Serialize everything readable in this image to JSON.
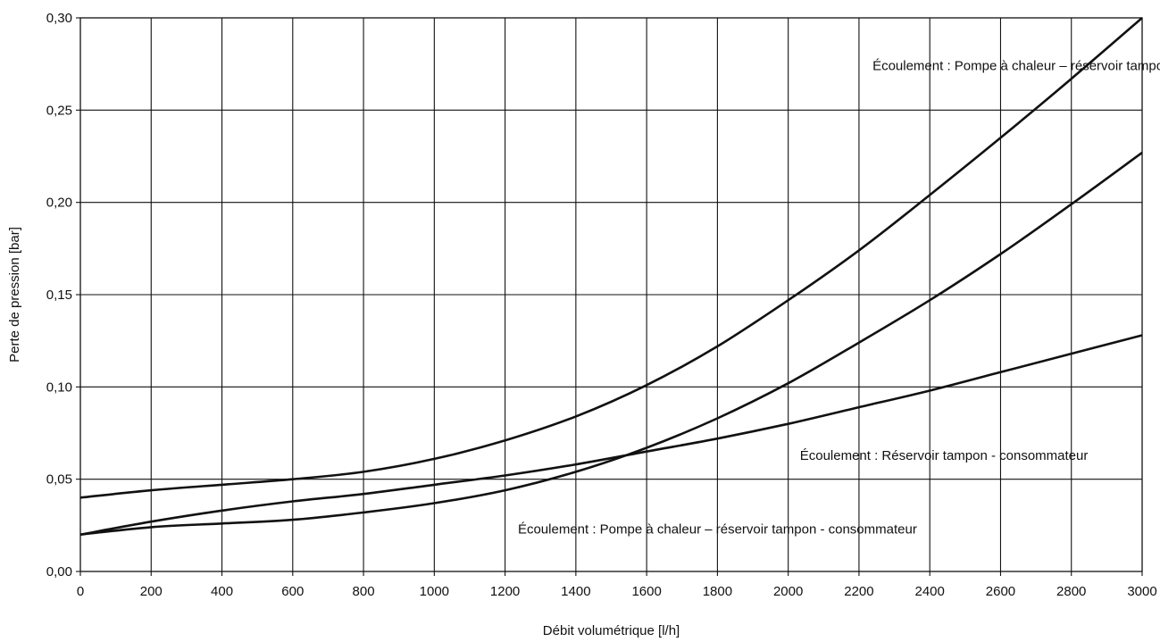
{
  "chart_data": {
    "type": "line",
    "title": "",
    "xlabel": "Débit volumétrique [l/h]",
    "ylabel": "Perte de pression [bar]",
    "xlim": [
      0,
      3000
    ],
    "ylim": [
      0,
      0.3
    ],
    "grid": true,
    "x_ticks": [
      0,
      200,
      400,
      600,
      800,
      1000,
      1200,
      1400,
      1600,
      1800,
      2000,
      2200,
      2400,
      2600,
      2800,
      3000
    ],
    "x_tick_labels": [
      "0",
      "200",
      "400",
      "600",
      "800",
      "1000",
      "1200",
      "1400",
      "1600",
      "1800",
      "2000",
      "2200",
      "2400",
      "2600",
      "2800",
      "3000"
    ],
    "y_ticks": [
      0,
      0.05,
      0.1,
      0.15,
      0.2,
      0.25,
      0.3
    ],
    "y_tick_labels": [
      "0,00",
      "0,05",
      "0,10",
      "0,15",
      "0,20",
      "0,25",
      "0,30"
    ],
    "line_color": "#111111",
    "series": [
      {
        "x": [
          0,
          200,
          400,
          600,
          800,
          1000,
          1200,
          1400,
          1600,
          1800,
          2000,
          2200,
          2400,
          2600,
          2800,
          3000
        ],
        "y": [
          0.04,
          0.044,
          0.047,
          0.05,
          0.054,
          0.061,
          0.071,
          0.084,
          0.101,
          0.122,
          0.147,
          0.174,
          0.204,
          0.235,
          0.267,
          0.3
        ]
      },
      {
        "x": [
          0,
          200,
          400,
          600,
          800,
          1000,
          1200,
          1400,
          1600,
          1800,
          2000,
          2200,
          2400,
          2600,
          2800,
          3000
        ],
        "y": [
          0.02,
          0.024,
          0.026,
          0.028,
          0.032,
          0.037,
          0.044,
          0.054,
          0.067,
          0.083,
          0.102,
          0.124,
          0.147,
          0.172,
          0.199,
          0.227
        ]
      },
      {
        "x": [
          0,
          200,
          400,
          600,
          800,
          1000,
          1200,
          1400,
          1600,
          1800,
          2000,
          2200,
          2400,
          2600,
          2800,
          3000
        ],
        "y": [
          0.02,
          0.027,
          0.033,
          0.038,
          0.042,
          0.047,
          0.052,
          0.058,
          0.065,
          0.072,
          0.08,
          0.089,
          0.098,
          0.108,
          0.118,
          0.128
        ]
      }
    ],
    "annotations": [
      {
        "text": "Écoulement : Pompe à chaleur – réservoir tampon",
        "x": 2660,
        "y": 0.274,
        "anchor": "middle"
      },
      {
        "text": "Écoulement : Réservoir tampon - consommateur",
        "x": 2440,
        "y": 0.063,
        "anchor": "middle"
      },
      {
        "text": "Écoulement : Pompe à chaleur – réservoir tampon - consommateur",
        "x": 1800,
        "y": 0.023,
        "anchor": "middle"
      }
    ]
  }
}
